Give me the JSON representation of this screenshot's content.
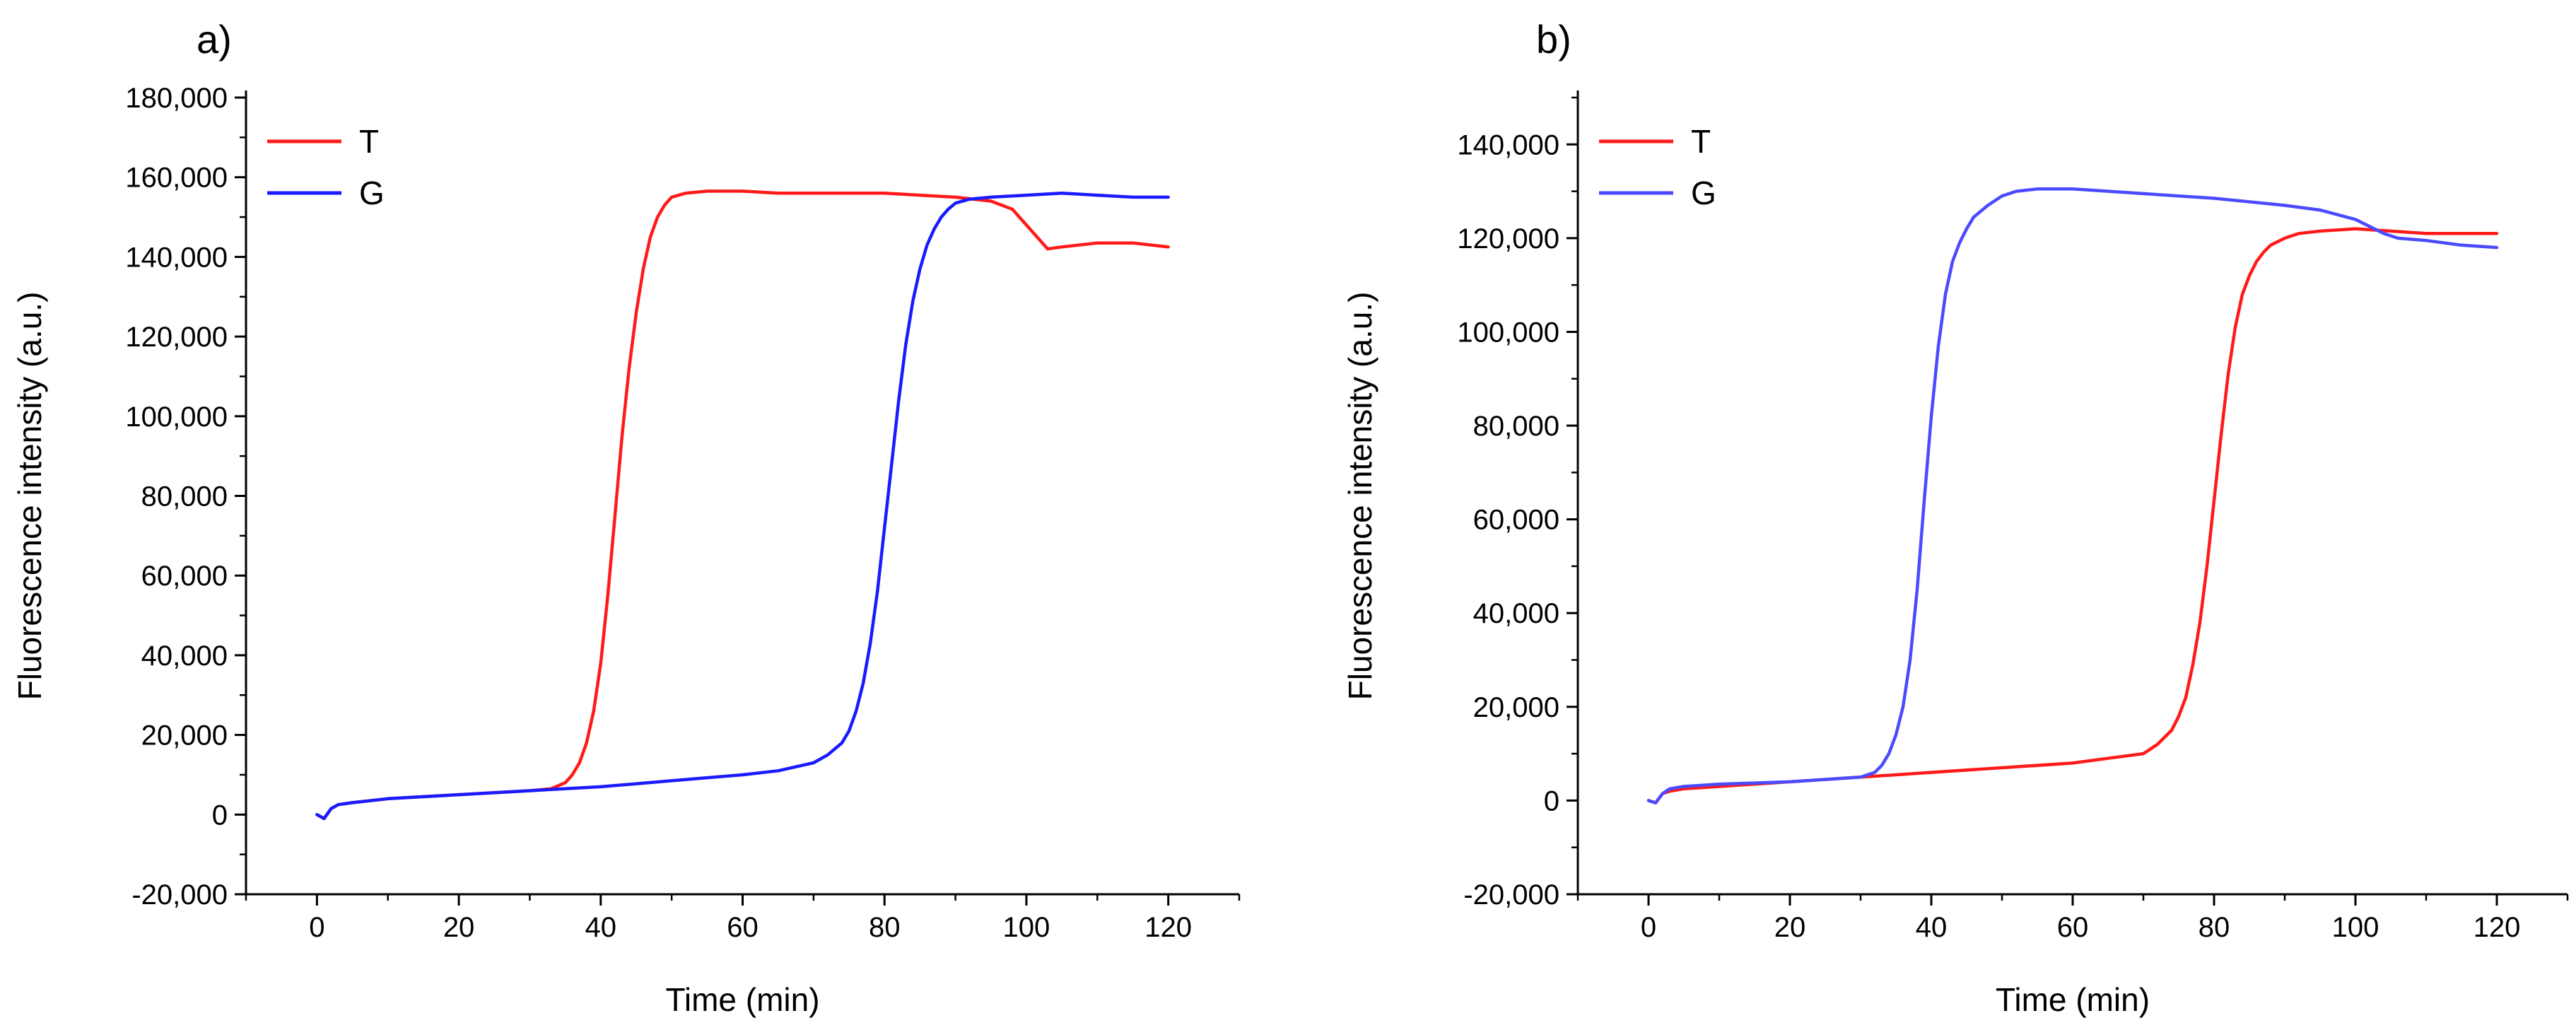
{
  "chart_data": [
    {
      "panel_label": "a)",
      "type": "line",
      "xlabel": "Time (min)",
      "ylabel": "Fluorescence intensity (a.u.)",
      "xlim": [
        -10,
        130
      ],
      "ylim": [
        -20000,
        180000
      ],
      "xticks": [
        0,
        20,
        40,
        60,
        80,
        100,
        120
      ],
      "xtick_labels": [
        "0",
        "20",
        "40",
        "60",
        "80",
        "100",
        "120"
      ],
      "yticks": [
        -20000,
        0,
        20000,
        40000,
        60000,
        80000,
        100000,
        120000,
        140000,
        160000,
        180000
      ],
      "ytick_labels": [
        "-20,000",
        "0",
        "20,000",
        "40,000",
        "60,000",
        "80,000",
        "100,000",
        "120,000",
        "140,000",
        "160,000",
        "180,000"
      ],
      "legend_position": "top-left",
      "grid": false,
      "series": [
        {
          "name": "T",
          "color": "#ff1a1a",
          "x": [
            0,
            1,
            2,
            3,
            5,
            10,
            20,
            30,
            33,
            35,
            36,
            37,
            38,
            39,
            40,
            41,
            42,
            43,
            44,
            45,
            46,
            47,
            48,
            49,
            50,
            52,
            55,
            60,
            65,
            70,
            75,
            80,
            85,
            90,
            95,
            98,
            100,
            102,
            103,
            105,
            110,
            115,
            120
          ],
          "y": [
            0,
            -1000,
            1500,
            2500,
            3000,
            4000,
            5000,
            6000,
            6500,
            8000,
            10000,
            13000,
            18000,
            26000,
            38000,
            55000,
            75000,
            95000,
            112000,
            126000,
            137000,
            145000,
            150000,
            153000,
            155000,
            156000,
            156500,
            156500,
            156000,
            156000,
            156000,
            156000,
            155500,
            155000,
            154000,
            152000,
            148000,
            144000,
            142000,
            142500,
            143500,
            143500,
            142500
          ]
        },
        {
          "name": "G",
          "color": "#1a1aff",
          "x": [
            0,
            1,
            2,
            3,
            5,
            10,
            20,
            30,
            40,
            50,
            60,
            65,
            70,
            72,
            74,
            75,
            76,
            77,
            78,
            79,
            80,
            81,
            82,
            83,
            84,
            85,
            86,
            87,
            88,
            89,
            90,
            92,
            95,
            100,
            105,
            110,
            115,
            120
          ],
          "y": [
            0,
            -1000,
            1500,
            2500,
            3000,
            4000,
            5000,
            6000,
            7000,
            8500,
            10000,
            11000,
            13000,
            15000,
            18000,
            21000,
            26000,
            33000,
            43000,
            56000,
            72000,
            88000,
            104000,
            118000,
            129000,
            137000,
            143000,
            147000,
            150000,
            152000,
            153500,
            154500,
            155000,
            155500,
            156000,
            155500,
            155000,
            155000
          ]
        }
      ]
    },
    {
      "panel_label": "b)",
      "type": "line",
      "xlabel": "Time (min)",
      "ylabel": "Fluorescence intensity (a.u.)",
      "xlim": [
        -10,
        130
      ],
      "ylim": [
        -20000,
        150000
      ],
      "xticks": [
        0,
        20,
        40,
        60,
        80,
        100,
        120
      ],
      "xtick_labels": [
        "0",
        "20",
        "40",
        "60",
        "80",
        "100",
        "120"
      ],
      "yticks": [
        -20000,
        0,
        20000,
        40000,
        60000,
        80000,
        100000,
        120000,
        140000
      ],
      "ytick_labels": [
        "-20,000",
        "0",
        "20,000",
        "40,000",
        "60,000",
        "80,000",
        "100,000",
        "120,000",
        "140,000"
      ],
      "legend_position": "top-left",
      "grid": false,
      "series": [
        {
          "name": "T",
          "color": "#ff1a1a",
          "x": [
            0,
            1,
            2,
            3,
            5,
            10,
            20,
            30,
            40,
            50,
            60,
            65,
            70,
            72,
            74,
            75,
            76,
            77,
            78,
            79,
            80,
            81,
            82,
            83,
            84,
            85,
            86,
            87,
            88,
            90,
            92,
            95,
            100,
            105,
            110,
            115,
            120
          ],
          "y": [
            0,
            -500,
            1500,
            2000,
            2500,
            3000,
            4000,
            5000,
            6000,
            7000,
            8000,
            9000,
            10000,
            12000,
            15000,
            18000,
            22000,
            29000,
            38000,
            50000,
            64000,
            78000,
            91000,
            101000,
            108000,
            112000,
            115000,
            117000,
            118500,
            120000,
            121000,
            121500,
            122000,
            121500,
            121000,
            121000,
            121000
          ]
        },
        {
          "name": "G",
          "color": "#4a4aff",
          "x": [
            0,
            1,
            2,
            3,
            5,
            10,
            20,
            30,
            32,
            33,
            34,
            35,
            36,
            37,
            38,
            39,
            40,
            41,
            42,
            43,
            44,
            45,
            46,
            48,
            50,
            52,
            55,
            60,
            70,
            80,
            90,
            95,
            100,
            102,
            104,
            106,
            110,
            115,
            120
          ],
          "y": [
            0,
            -500,
            1500,
            2500,
            3000,
            3500,
            4000,
            5000,
            6000,
            7500,
            10000,
            14000,
            20000,
            30000,
            45000,
            64000,
            82000,
            97000,
            108000,
            115000,
            119000,
            122000,
            124500,
            127000,
            129000,
            130000,
            130500,
            130500,
            129500,
            128500,
            127000,
            126000,
            124000,
            122500,
            121000,
            120000,
            119500,
            118500,
            118000
          ]
        }
      ]
    }
  ]
}
